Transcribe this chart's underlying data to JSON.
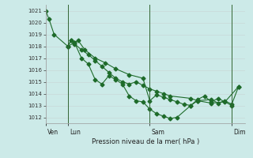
{
  "xlabel": "Pression niveau de la mer( hPa )",
  "bg_color": "#cceae8",
  "grid_color": "#c8d8d8",
  "line_color": "#1e6b2a",
  "ylim": [
    1011.5,
    1021.5
  ],
  "yticks": [
    1012,
    1013,
    1014,
    1015,
    1016,
    1017,
    1018,
    1019,
    1020,
    1021
  ],
  "x_day_labels": [
    "Ven",
    "Lun",
    "Sam",
    "Dim"
  ],
  "series1_x": [
    0,
    2,
    5,
    13,
    15,
    17,
    21,
    25,
    29,
    33,
    37,
    41,
    45,
    49,
    53,
    57,
    61,
    65,
    69,
    73,
    85,
    89,
    97,
    105,
    113
  ],
  "series1_y": [
    1021.0,
    1020.3,
    1019.0,
    1018.0,
    1018.5,
    1018.2,
    1017.7,
    1017.3,
    1016.8,
    1016.3,
    1015.8,
    1015.3,
    1015.0,
    1014.8,
    1015.0,
    1014.7,
    1014.4,
    1014.2,
    1014.0,
    1013.8,
    1013.6,
    1013.4,
    1013.2,
    1013.3,
    1014.6
  ],
  "series2_x": [
    13,
    15,
    17,
    21,
    25,
    29,
    33,
    37,
    41,
    45,
    49,
    53,
    57,
    61,
    65,
    69,
    73,
    77,
    85,
    89,
    97,
    101,
    105,
    109,
    113
  ],
  "series2_y": [
    1018.0,
    1018.5,
    1018.3,
    1017.0,
    1016.5,
    1015.2,
    1014.8,
    1015.5,
    1015.2,
    1014.8,
    1013.8,
    1013.4,
    1013.3,
    1012.7,
    1012.3,
    1012.1,
    1011.9,
    1012.0,
    1013.0,
    1013.4,
    1013.5,
    1013.2,
    1013.4,
    1013.1,
    1014.6
  ],
  "series3_x": [
    13,
    17,
    19,
    23,
    29,
    35,
    41,
    49,
    57,
    61,
    65,
    69,
    73,
    77,
    81,
    85,
    89,
    93,
    97,
    101,
    109
  ],
  "series3_y": [
    1018.0,
    1018.3,
    1018.5,
    1017.7,
    1017.0,
    1016.6,
    1016.1,
    1015.6,
    1015.3,
    1013.4,
    1013.9,
    1013.7,
    1013.5,
    1013.3,
    1013.1,
    1013.0,
    1013.5,
    1013.8,
    1013.3,
    1013.6,
    1013.0
  ],
  "vline_x": [
    13,
    61,
    109
  ],
  "xmax": 117
}
